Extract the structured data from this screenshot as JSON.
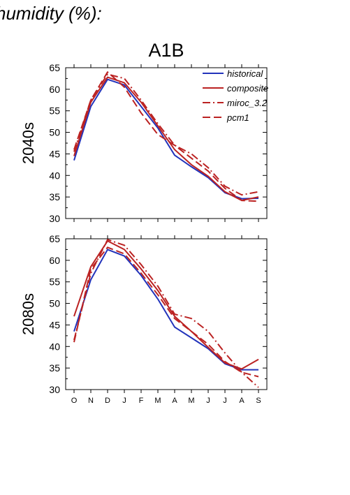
{
  "page": {
    "header": "humidity (%):",
    "title": "A1B"
  },
  "chart_data": [
    {
      "type": "line",
      "row_label": "2040s",
      "categories": [
        "O",
        "N",
        "D",
        "J",
        "F",
        "M",
        "A",
        "M",
        "J",
        "J",
        "A",
        "S"
      ],
      "ylim": [
        30,
        65
      ],
      "yticks": [
        30,
        35,
        40,
        45,
        50,
        55,
        60,
        65
      ],
      "legend": "top-right",
      "grid": false,
      "series": [
        {
          "name": "historical",
          "color": "#2233bb",
          "dash": "solid",
          "values": [
            43.5,
            56,
            62.3,
            61,
            56,
            51,
            44.7,
            42,
            39.5,
            36,
            34.6,
            34.7
          ]
        },
        {
          "name": "composite",
          "color": "#bb2222",
          "dash": "solid",
          "values": [
            44.5,
            57,
            62.8,
            61.5,
            57,
            51.5,
            46,
            42.5,
            39.8,
            36.2,
            34.2,
            35
          ]
        },
        {
          "name": "miroc_3.2",
          "color": "#bb2222",
          "dash": "dashdot",
          "values": [
            45.5,
            57.5,
            63.5,
            62.5,
            57.5,
            52,
            47,
            45,
            41.8,
            37.5,
            35.5,
            36.2
          ]
        },
        {
          "name": "pcm1",
          "color": "#bb2222",
          "dash": "dashed",
          "values": [
            46,
            57.5,
            64,
            60.5,
            54.5,
            49.5,
            47,
            44,
            41,
            37,
            34.2,
            34
          ]
        }
      ]
    },
    {
      "type": "line",
      "row_label": "2080s",
      "categories": [
        "O",
        "N",
        "D",
        "J",
        "F",
        "M",
        "A",
        "M",
        "J",
        "J",
        "A",
        "S"
      ],
      "ylim": [
        30,
        65
      ],
      "yticks": [
        30,
        35,
        40,
        45,
        50,
        55,
        60,
        65
      ],
      "legend": "none",
      "grid": false,
      "series": [
        {
          "name": "historical",
          "color": "#2233bb",
          "dash": "solid",
          "values": [
            43.5,
            55.5,
            62.5,
            61,
            56.5,
            51,
            44.5,
            42,
            39.5,
            36,
            34.6,
            34.6
          ]
        },
        {
          "name": "composite",
          "color": "#bb2222",
          "dash": "solid",
          "values": [
            47,
            58.5,
            64.5,
            62.5,
            58,
            53,
            47,
            43.5,
            39.8,
            36.2,
            34.8,
            37
          ]
        },
        {
          "name": "miroc_3.2",
          "color": "#bb2222",
          "dash": "dashdot",
          "values": [
            41.5,
            57,
            64.8,
            63.5,
            59,
            54,
            47.5,
            46.5,
            43.5,
            38.5,
            34,
            30.5
          ]
        },
        {
          "name": "pcm1",
          "color": "#bb2222",
          "dash": "dashed",
          "values": [
            41,
            58,
            63,
            61.5,
            57,
            52,
            46.5,
            43.5,
            40.5,
            36.5,
            34,
            33
          ]
        }
      ]
    }
  ]
}
